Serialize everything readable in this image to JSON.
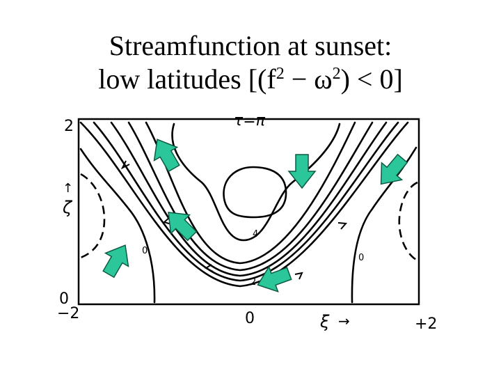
{
  "title": {
    "line1": "Streamfunction at sunset:",
    "line2_prefix": "low latitudes [(f",
    "line2_sup1": "2",
    "line2_mid": " − ω",
    "line2_sup2": "2",
    "line2_suffix": ") < 0]"
  },
  "plot": {
    "time_label": "τ=π",
    "y_axis": {
      "top": "2",
      "bottom": "0",
      "label": "ζ",
      "arrow": "↑"
    },
    "x_axis": {
      "left": "−2",
      "center": "0",
      "right": "+2",
      "label": "ξ",
      "arrow": "→"
    },
    "contour_labels": [
      "4",
      "0",
      "0",
      "2"
    ]
  },
  "colors": {
    "flow_arrow_fill": "#2bc79a",
    "flow_arrow_stroke": "#0c5a44",
    "line": "#000000"
  },
  "icons": [
    "flow-arrow-icon"
  ]
}
